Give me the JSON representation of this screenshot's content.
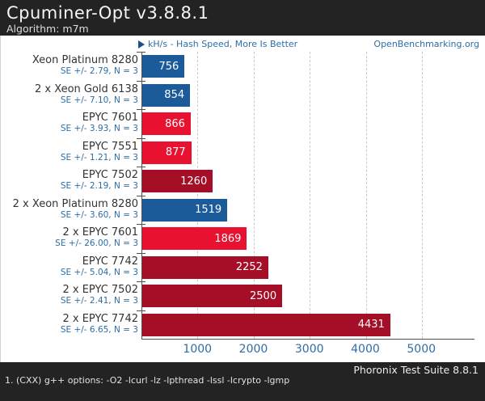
{
  "header": {
    "title": "Cpuminer-Opt v3.8.8.1",
    "subtitle": "Algorithm: m7m"
  },
  "subheader": {
    "metric_label": "kH/s - Hash Speed, More Is Better",
    "site_link": "OpenBenchmarking.org"
  },
  "chart_data": {
    "type": "bar",
    "orientation": "horizontal",
    "title": "Cpuminer-Opt v3.8.8.1",
    "subtitle": "Algorithm: m7m",
    "unit": "kH/s",
    "higher_is_better": true,
    "xlim": [
      0,
      5950
    ],
    "x_ticks": [
      1000,
      2000,
      3000,
      4000,
      5000
    ],
    "grid": "dashed vertical gridlines",
    "legend": "none",
    "categories": [
      "Xeon Platinum 8280",
      "2 x Xeon Gold 6138",
      "EPYC 7601",
      "EPYC 7551",
      "EPYC 7502",
      "2 x Xeon Platinum 8280",
      "2 x EPYC 7601",
      "EPYC 7742",
      "2 x EPYC 7502",
      "2 x EPYC 7742"
    ],
    "values": [
      756,
      854,
      866,
      877,
      1260,
      1519,
      1869,
      2252,
      2500,
      4431
    ],
    "rows": [
      {
        "label": "Xeon Platinum 8280",
        "se": "SE +/- 2.79, N = 3",
        "value": 756,
        "color": "#1c5b99"
      },
      {
        "label": "2 x Xeon Gold 6138",
        "se": "SE +/- 7.10, N = 3",
        "value": 854,
        "color": "#1c5b99"
      },
      {
        "label": "EPYC 7601",
        "se": "SE +/- 3.93, N = 3",
        "value": 866,
        "color": "#e8112f"
      },
      {
        "label": "EPYC 7551",
        "se": "SE +/- 1.21, N = 3",
        "value": 877,
        "color": "#e8112f"
      },
      {
        "label": "EPYC 7502",
        "se": "SE +/- 2.19, N = 3",
        "value": 1260,
        "color": "#a50e27"
      },
      {
        "label": "2 x Xeon Platinum 8280",
        "se": "SE +/- 3.60, N = 3",
        "value": 1519,
        "color": "#1c5b99"
      },
      {
        "label": "2 x EPYC 7601",
        "se": "SE +/- 26.00, N = 3",
        "value": 1869,
        "color": "#e8112f"
      },
      {
        "label": "EPYC 7742",
        "se": "SE +/- 5.04, N = 3",
        "value": 2252,
        "color": "#a50e27"
      },
      {
        "label": "2 x EPYC 7502",
        "se": "SE +/- 2.41, N = 3",
        "value": 2500,
        "color": "#a50e27"
      },
      {
        "label": "2 x EPYC 7742",
        "se": "SE +/- 6.65, N = 3",
        "value": 4431,
        "color": "#a50e27"
      }
    ]
  },
  "colors": {
    "intel_blue": "#1c5b99",
    "epyc_bright_red": "#e8112f",
    "epyc_dark_red": "#a50e27",
    "accent_text_blue": "#2e6da4",
    "header_bg": "#232323",
    "gridline": "#c9c9c9",
    "axis": "#4f4f4f"
  },
  "footer": {
    "suite_label": "Phoronix Test Suite 8.8.1",
    "note": "1. (CXX) g++ options: -O2 -lcurl -lz -lpthread -lssl -lcrypto -lgmp"
  }
}
